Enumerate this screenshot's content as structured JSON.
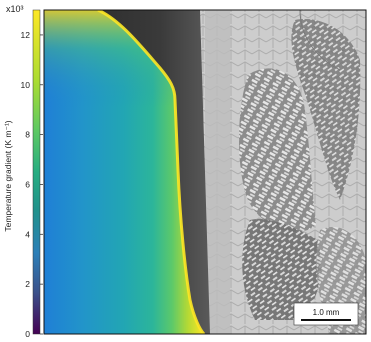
{
  "colorbar": {
    "multiplier": "x10³",
    "label": "Temperature gradient (K m⁻¹)",
    "ticks": [
      "0",
      "2",
      "4",
      "6",
      "8",
      "10",
      "12"
    ],
    "range": [
      0,
      13
    ],
    "colormap": "viridis"
  },
  "scale_bar": {
    "label": "1.0 mm"
  },
  "panels": {
    "left": "simulation-temperature-gradient-map",
    "right": "micrograph-solidification-structure"
  },
  "colors": {
    "frame": "#111111",
    "melt_pool_shadow": "#2e2e2e",
    "micrograph_bg": "#c9c9c9",
    "micrograph_dark": "#4a4a4a"
  }
}
